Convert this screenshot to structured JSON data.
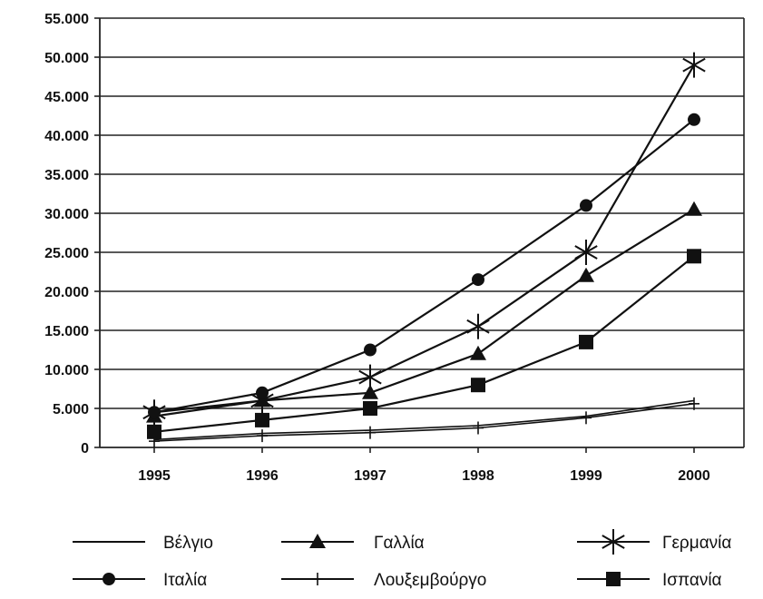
{
  "chart_data": {
    "type": "line",
    "title": "",
    "xlabel": "",
    "ylabel": "",
    "categories": [
      "1995",
      "1996",
      "1997",
      "1998",
      "1999",
      "2000"
    ],
    "ylim": [
      0,
      55000
    ],
    "y_ticks": [
      "0",
      "5.000",
      "10.000",
      "15.000",
      "20.000",
      "25.000",
      "30.000",
      "35.000",
      "40.000",
      "45.000",
      "50.000",
      "55.000"
    ],
    "grid": "horizontal",
    "legend_position": "bottom",
    "series": [
      {
        "name": "Βέλγιο",
        "marker": "none",
        "values": [
          1000,
          1800,
          2200,
          2800,
          4000,
          6000
        ]
      },
      {
        "name": "Γαλλία",
        "marker": "triangle",
        "values": [
          4000,
          6000,
          7000,
          12000,
          22000,
          30500
        ]
      },
      {
        "name": "Γερμανία",
        "marker": "asterisk",
        "values": [
          4500,
          6000,
          9000,
          15500,
          25000,
          49000
        ]
      },
      {
        "name": "Ιταλία",
        "marker": "circle",
        "values": [
          4500,
          7000,
          12500,
          21500,
          31000,
          42000
        ]
      },
      {
        "name": "Λουξεμβούργο",
        "marker": "plus",
        "values": [
          800,
          1500,
          1900,
          2500,
          3800,
          5600
        ]
      },
      {
        "name": "Ισπανία",
        "marker": "square",
        "values": [
          2000,
          3500,
          5000,
          8000,
          13500,
          24500
        ]
      }
    ]
  }
}
